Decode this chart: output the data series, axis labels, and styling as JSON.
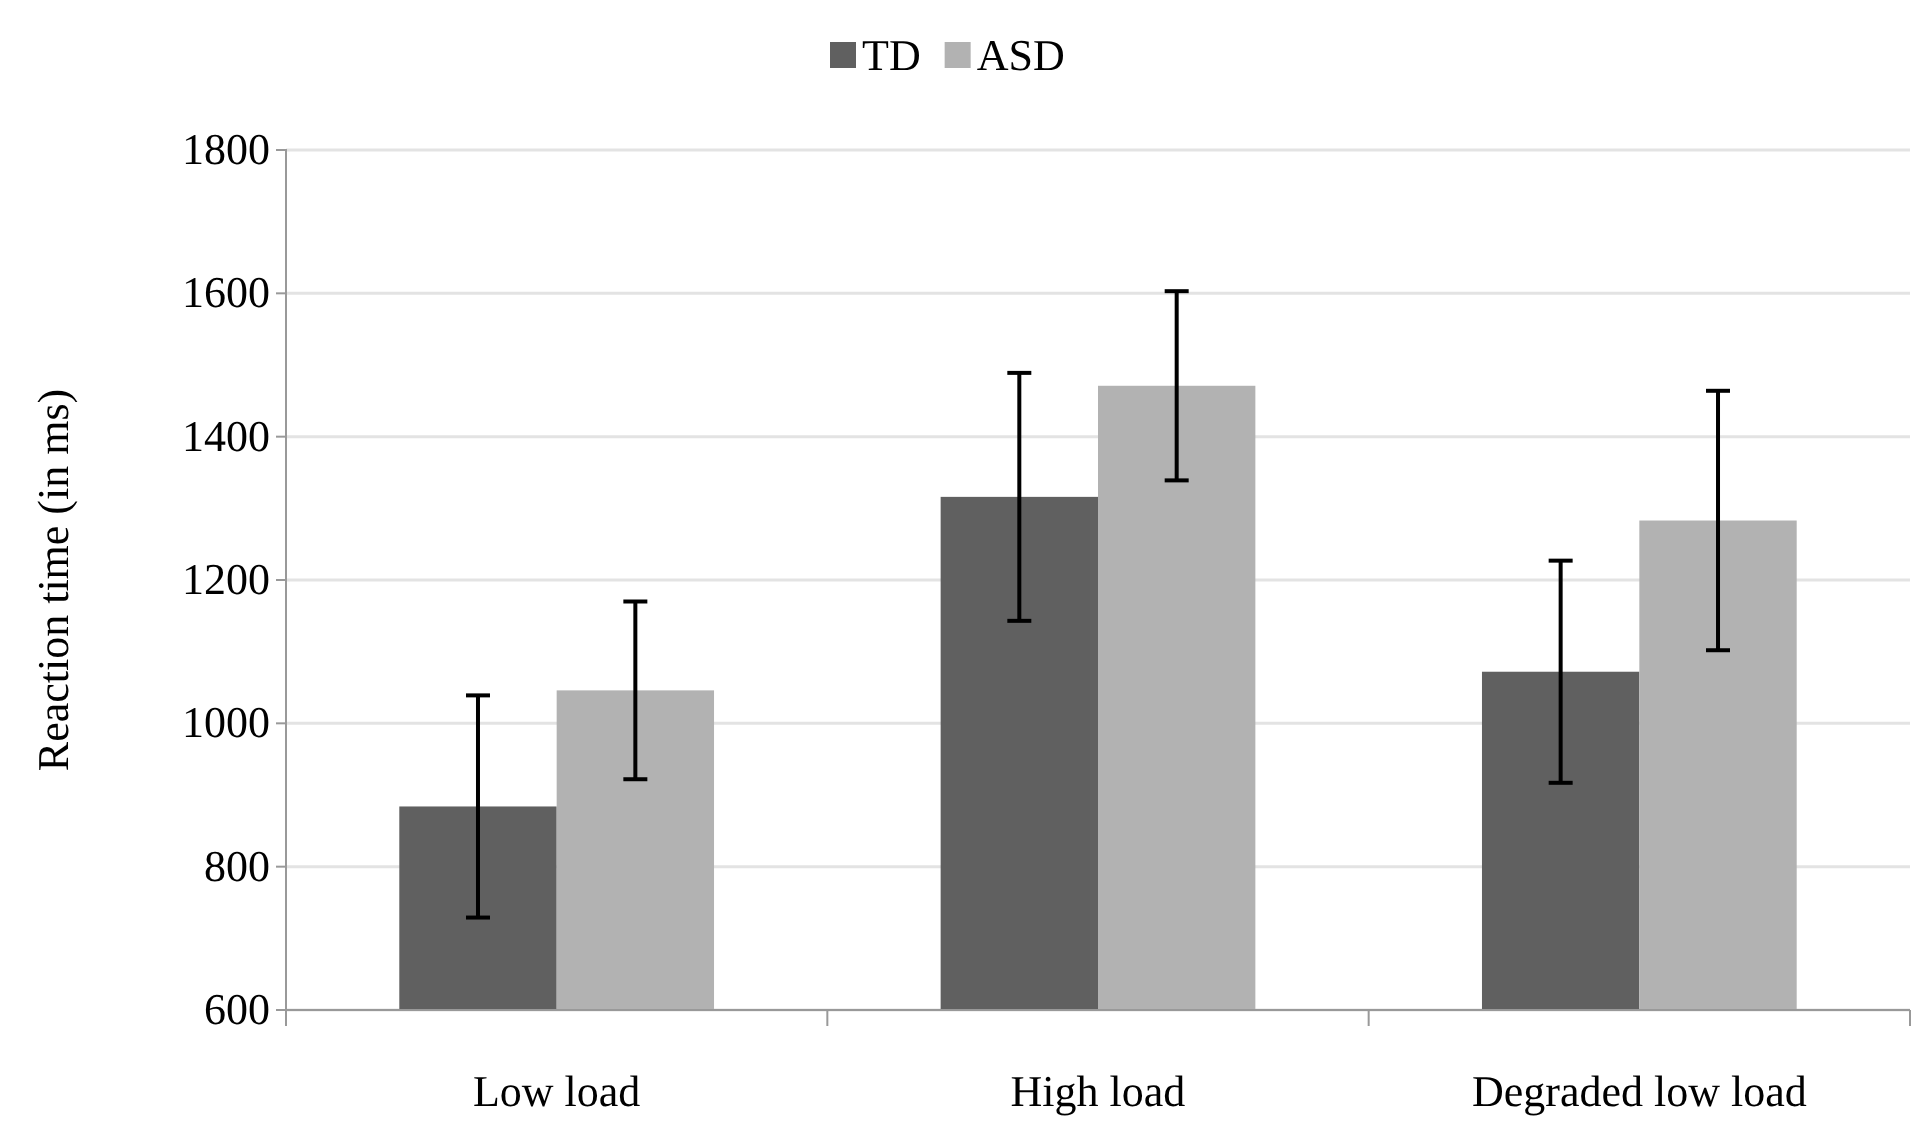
{
  "chart_data": {
    "type": "bar",
    "ylabel": "Reaction time (in ms)",
    "categories": [
      "Low load",
      "High load",
      "Degraded low load"
    ],
    "series": [
      {
        "name": "TD",
        "color": "#606060",
        "values": [
          884,
          1316,
          1072
        ],
        "errors": [
          155,
          173,
          155
        ]
      },
      {
        "name": "ASD",
        "color": "#b2b2b2",
        "values": [
          1046,
          1471,
          1283
        ],
        "errors": [
          124,
          132,
          181
        ]
      }
    ],
    "ylim": [
      600,
      1800
    ],
    "yticks": [
      600,
      800,
      1000,
      1200,
      1400,
      1600,
      1800
    ],
    "grid": "y",
    "legend": "top"
  }
}
